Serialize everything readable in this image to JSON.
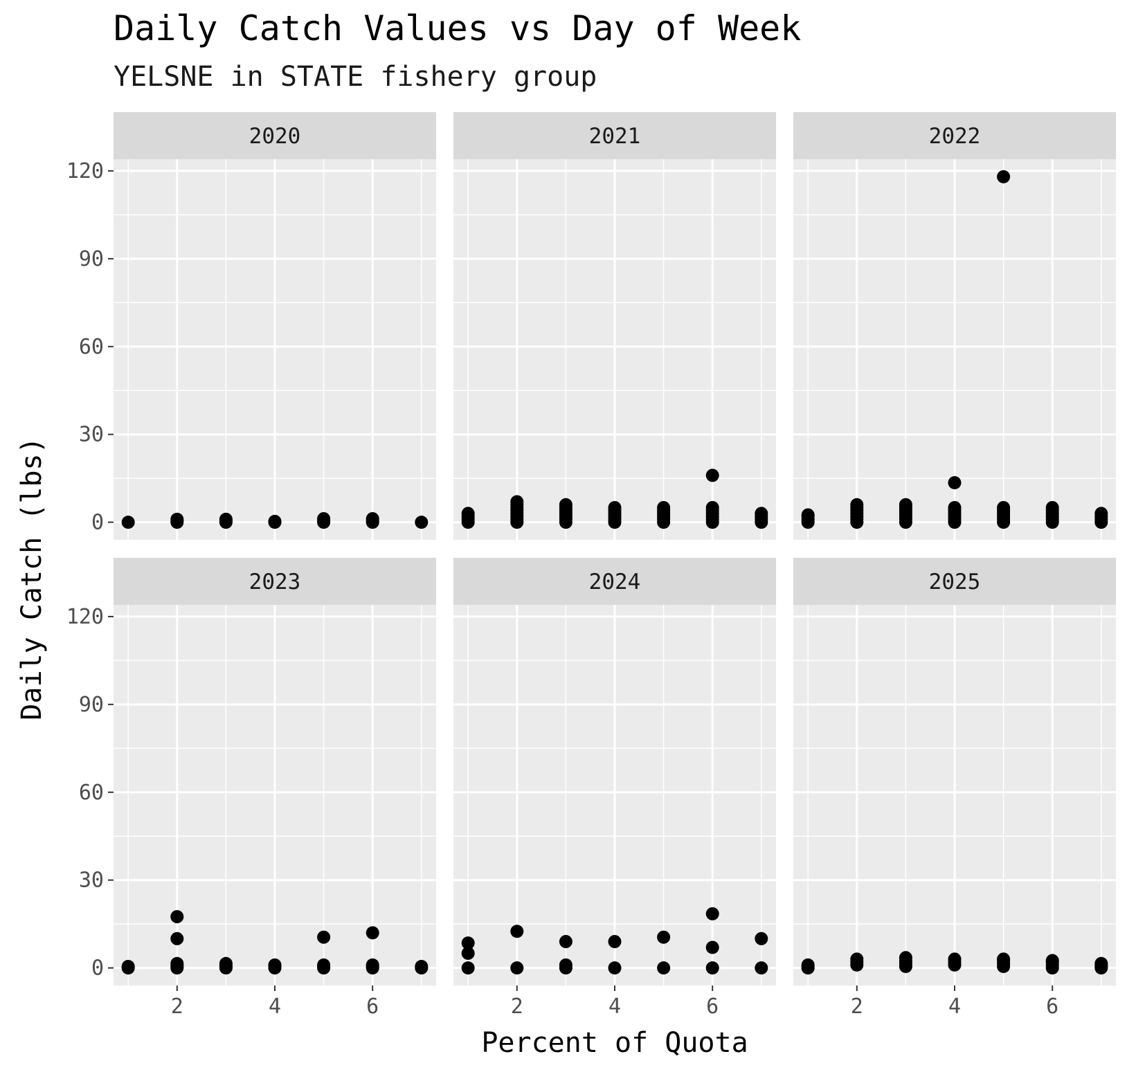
{
  "chart_data": {
    "type": "scatter",
    "title": "Daily Catch Values vs Day of Week",
    "subtitle": "YELSNE in STATE fishery group",
    "xlabel": "Percent of Quota",
    "ylabel": "Daily Catch (lbs)",
    "xlim": [
      0.7,
      7.3
    ],
    "ylim": [
      -6,
      124
    ],
    "xticks": [
      2,
      4,
      6
    ],
    "yticks": [
      0,
      30,
      60,
      90,
      120
    ],
    "grid": true,
    "facets": [
      {
        "label": "2020",
        "points": [
          [
            1,
            0
          ],
          [
            2,
            0
          ],
          [
            2,
            0.5
          ],
          [
            2,
            1
          ],
          [
            3,
            0
          ],
          [
            3,
            0.5
          ],
          [
            3,
            1
          ],
          [
            4,
            0
          ],
          [
            4,
            0.3
          ],
          [
            5,
            0
          ],
          [
            5,
            0.5
          ],
          [
            5,
            1.2
          ],
          [
            6,
            0
          ],
          [
            6,
            0.5
          ],
          [
            6,
            1.2
          ],
          [
            7,
            0
          ]
        ]
      },
      {
        "label": "2021",
        "points": [
          [
            1,
            0
          ],
          [
            1,
            1
          ],
          [
            1,
            2
          ],
          [
            1,
            3
          ],
          [
            2,
            0
          ],
          [
            2,
            1
          ],
          [
            2,
            2
          ],
          [
            2,
            3
          ],
          [
            2,
            4
          ],
          [
            2,
            5
          ],
          [
            2,
            6
          ],
          [
            2,
            7
          ],
          [
            3,
            0
          ],
          [
            3,
            1
          ],
          [
            3,
            2
          ],
          [
            3,
            3
          ],
          [
            3,
            4
          ],
          [
            3,
            5
          ],
          [
            3,
            6
          ],
          [
            4,
            0
          ],
          [
            4,
            1
          ],
          [
            4,
            2
          ],
          [
            4,
            3
          ],
          [
            4,
            4
          ],
          [
            4,
            5
          ],
          [
            5,
            0
          ],
          [
            5,
            1
          ],
          [
            5,
            2
          ],
          [
            5,
            3
          ],
          [
            5,
            4
          ],
          [
            5,
            5
          ],
          [
            6,
            0
          ],
          [
            6,
            1
          ],
          [
            6,
            2
          ],
          [
            6,
            3
          ],
          [
            6,
            4
          ],
          [
            6,
            5
          ],
          [
            6,
            16
          ],
          [
            7,
            0
          ],
          [
            7,
            1
          ],
          [
            7,
            2
          ],
          [
            7,
            3
          ]
        ]
      },
      {
        "label": "2022",
        "points": [
          [
            1,
            0
          ],
          [
            1,
            1
          ],
          [
            1,
            2
          ],
          [
            1,
            2.5
          ],
          [
            2,
            0
          ],
          [
            2,
            1
          ],
          [
            2,
            2
          ],
          [
            2,
            3
          ],
          [
            2,
            4
          ],
          [
            2,
            5
          ],
          [
            2,
            6
          ],
          [
            3,
            0
          ],
          [
            3,
            1
          ],
          [
            3,
            2
          ],
          [
            3,
            3
          ],
          [
            3,
            4
          ],
          [
            3,
            5
          ],
          [
            3,
            6
          ],
          [
            4,
            0
          ],
          [
            4,
            1
          ],
          [
            4,
            2
          ],
          [
            4,
            3
          ],
          [
            4,
            4
          ],
          [
            4,
            5
          ],
          [
            4,
            13.5
          ],
          [
            5,
            0
          ],
          [
            5,
            1
          ],
          [
            5,
            2
          ],
          [
            5,
            3
          ],
          [
            5,
            4
          ],
          [
            5,
            5
          ],
          [
            5,
            118
          ],
          [
            6,
            0
          ],
          [
            6,
            1
          ],
          [
            6,
            2
          ],
          [
            6,
            3
          ],
          [
            6,
            4
          ],
          [
            6,
            5
          ],
          [
            7,
            0
          ],
          [
            7,
            1
          ],
          [
            7,
            2
          ],
          [
            7,
            3
          ]
        ]
      },
      {
        "label": "2023",
        "points": [
          [
            1,
            0
          ],
          [
            1,
            0.5
          ],
          [
            2,
            0
          ],
          [
            2,
            0.5
          ],
          [
            2,
            1
          ],
          [
            2,
            1.5
          ],
          [
            2,
            10
          ],
          [
            2,
            17.5
          ],
          [
            3,
            0
          ],
          [
            3,
            0.5
          ],
          [
            3,
            1
          ],
          [
            3,
            1.5
          ],
          [
            4,
            0
          ],
          [
            4,
            0.5
          ],
          [
            4,
            1
          ],
          [
            5,
            0
          ],
          [
            5,
            0.5
          ],
          [
            5,
            1
          ],
          [
            5,
            10.5
          ],
          [
            6,
            0
          ],
          [
            6,
            0.5
          ],
          [
            6,
            1
          ],
          [
            6,
            12
          ],
          [
            7,
            0
          ],
          [
            7,
            0.5
          ]
        ]
      },
      {
        "label": "2024",
        "points": [
          [
            1,
            0
          ],
          [
            1,
            5
          ],
          [
            1,
            8.5
          ],
          [
            2,
            0
          ],
          [
            2,
            12.5
          ],
          [
            3,
            0
          ],
          [
            3,
            1
          ],
          [
            3,
            9
          ],
          [
            4,
            0
          ],
          [
            4,
            9
          ],
          [
            5,
            0
          ],
          [
            5,
            10.5
          ],
          [
            6,
            0
          ],
          [
            6,
            7
          ],
          [
            6,
            18.5
          ],
          [
            7,
            0
          ],
          [
            7,
            10
          ]
        ]
      },
      {
        "label": "2025",
        "points": [
          [
            1,
            0
          ],
          [
            1,
            0.5
          ],
          [
            1,
            1
          ],
          [
            2,
            1
          ],
          [
            2,
            2
          ],
          [
            2,
            3
          ],
          [
            3,
            0.5
          ],
          [
            3,
            1.5
          ],
          [
            3,
            2.5
          ],
          [
            3,
            3.5
          ],
          [
            4,
            1
          ],
          [
            4,
            2
          ],
          [
            4,
            3
          ],
          [
            5,
            0.5
          ],
          [
            5,
            1.5
          ],
          [
            5,
            2.5
          ],
          [
            5,
            3
          ],
          [
            6,
            0
          ],
          [
            6,
            1
          ],
          [
            6,
            2
          ],
          [
            6,
            2.5
          ],
          [
            7,
            0
          ],
          [
            7,
            0.5
          ],
          [
            7,
            1
          ],
          [
            7,
            1.5
          ]
        ]
      }
    ]
  }
}
